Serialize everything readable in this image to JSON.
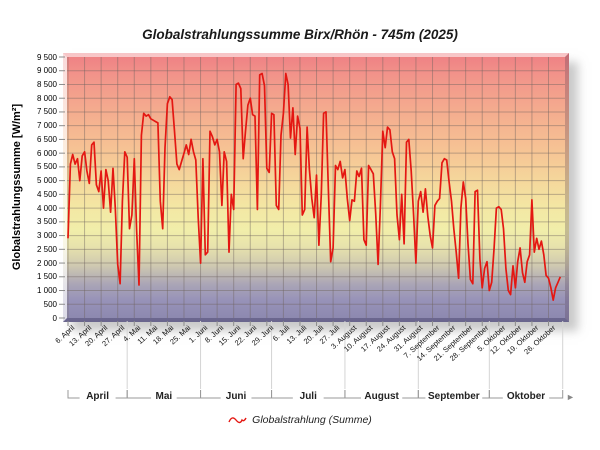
{
  "title": "Globalstrahlungssumme Birx/Rhön - 745m (2025)",
  "y_axis": {
    "label": "Globalstrahlungssumme [W/m²]",
    "tick_labels": [
      "9 500",
      "9 000",
      "8 500",
      "8 000",
      "7 500",
      "7 000",
      "6 500",
      "6 000",
      "5 500",
      "5 000",
      "4 500",
      "4 000",
      "3 500",
      "3 000",
      "2 500",
      "2 000",
      "1 500",
      "1 000",
      "500",
      "0"
    ],
    "min": 0,
    "max": 9500,
    "step": 500
  },
  "x_axis": {
    "tick_labels": [
      "6. April",
      "13. April",
      "20. April",
      "27. April",
      "4. Mai",
      "11. Mai",
      "18. Mai",
      "25. Mai",
      "1. Juni",
      "8. Juni",
      "15. Juni",
      "22. Juni",
      "29. Juni",
      "6. Juli",
      "13. Juli",
      "20. Juli",
      "27. Juli",
      "3. August",
      "10. August",
      "17. August",
      "24. August",
      "31. August",
      "7. September",
      "14. September",
      "21. September",
      "28. September",
      "5. Oktober",
      "12. Oktober",
      "19. Oktober",
      "26. Oktober"
    ],
    "months": [
      {
        "label": "April",
        "start_day": 0,
        "end_day": 25
      },
      {
        "label": "Mai",
        "start_day": 25,
        "end_day": 56
      },
      {
        "label": "Juni",
        "start_day": 56,
        "end_day": 86
      },
      {
        "label": "Juli",
        "start_day": 86,
        "end_day": 117
      },
      {
        "label": "August",
        "start_day": 117,
        "end_day": 148
      },
      {
        "label": "September",
        "start_day": 148,
        "end_day": 178
      },
      {
        "label": "Oktober",
        "start_day": 178,
        "end_day": 209
      }
    ],
    "arrow": "►"
  },
  "legend": {
    "label": "Globalstrahlung (Summe)"
  },
  "colors": {
    "line": "#e41712",
    "grid": "rgba(110,100,95,0.45)",
    "tick": "#8c8c8c",
    "boundary_line": "#d4d4d4",
    "bracket": "#999999",
    "wall_gradient": [
      "#ee7e83",
      "#f4a98e",
      "#f6c394",
      "#f3e8a4",
      "#e7e2ac",
      "#aaa5b6",
      "#8b87ae"
    ]
  },
  "chart_data": {
    "type": "line",
    "title": "Globalstrahlungssumme Birx/Rhön - 745m (2025)",
    "xlabel": "",
    "ylabel": "Globalstrahlungssumme [W/m²]",
    "ylim": [
      0,
      9500
    ],
    "grid": true,
    "legend_position": "bottom",
    "x_start": "6. April 2025",
    "x_interval": "daily",
    "x_tick_labels": [
      "6. April",
      "13. April",
      "20. April",
      "27. April",
      "4. Mai",
      "11. Mai",
      "18. Mai",
      "25. Mai",
      "1. Juni",
      "8. Juni",
      "15. Juni",
      "22. Juni",
      "29. Juni",
      "6. Juli",
      "13. Juli",
      "20. Juli",
      "27. Juli",
      "3. August",
      "10. August",
      "17. August",
      "24. August",
      "31. August",
      "7. September",
      "14. September",
      "21. September",
      "28. September",
      "5. Oktober",
      "12. Oktober",
      "19. Oktober",
      "26. Oktober"
    ],
    "series": [
      {
        "name": "Globalstrahlung (Summe)",
        "color": "#e41712",
        "values": [
          2900,
          5600,
          5950,
          5600,
          5800,
          5000,
          5900,
          6050,
          5350,
          4900,
          6300,
          6400,
          4850,
          4600,
          5350,
          4000,
          5400,
          5000,
          3850,
          5450,
          4000,
          1950,
          1250,
          4250,
          6050,
          5850,
          3250,
          3750,
          5800,
          3200,
          1200,
          6650,
          7450,
          7350,
          7400,
          7250,
          7200,
          7150,
          7100,
          4250,
          3250,
          6200,
          7800,
          8050,
          7950,
          6800,
          5600,
          5400,
          5700,
          6000,
          6300,
          5950,
          6500,
          6050,
          5750,
          3650,
          2000,
          5800,
          2300,
          2400,
          6800,
          6600,
          6300,
          6500,
          6050,
          4100,
          6050,
          5700,
          2400,
          4500,
          3950,
          8500,
          8550,
          8350,
          5800,
          6800,
          7750,
          8000,
          7400,
          7350,
          3950,
          8850,
          8900,
          8450,
          5450,
          5300,
          7450,
          7400,
          4100,
          3950,
          6650,
          7450,
          8900,
          8500,
          6550,
          7650,
          5950,
          7350,
          6900,
          3750,
          3950,
          6950,
          5400,
          4350,
          3650,
          5200,
          2650,
          4500,
          7450,
          7500,
          4650,
          2050,
          2550,
          5550,
          5400,
          5700,
          5100,
          5400,
          4350,
          3550,
          4300,
          4250,
          5350,
          5150,
          5450,
          2850,
          2650,
          5550,
          5400,
          5250,
          3800,
          1950,
          4100,
          6800,
          6200,
          6950,
          6850,
          6050,
          5800,
          3750,
          2850,
          4500,
          2700,
          6400,
          6500,
          5350,
          3750,
          2000,
          4250,
          4600,
          3850,
          4700,
          3700,
          3000,
          2550,
          4100,
          4250,
          4350,
          5650,
          5800,
          5750,
          4950,
          4250,
          3250,
          2400,
          1450,
          4000,
          4950,
          4350,
          2700,
          1400,
          1250,
          4600,
          4650,
          2150,
          1100,
          1800,
          2050,
          1000,
          1300,
          2550,
          4000,
          4050,
          3950,
          3250,
          1800,
          1000,
          850,
          1900,
          1100,
          2050,
          2550,
          1650,
          1300,
          2050,
          2300,
          4300,
          2400,
          2900,
          2500,
          2800,
          2300,
          1550,
          1450,
          1100,
          650,
          1100,
          1300,
          1500
        ]
      }
    ]
  }
}
